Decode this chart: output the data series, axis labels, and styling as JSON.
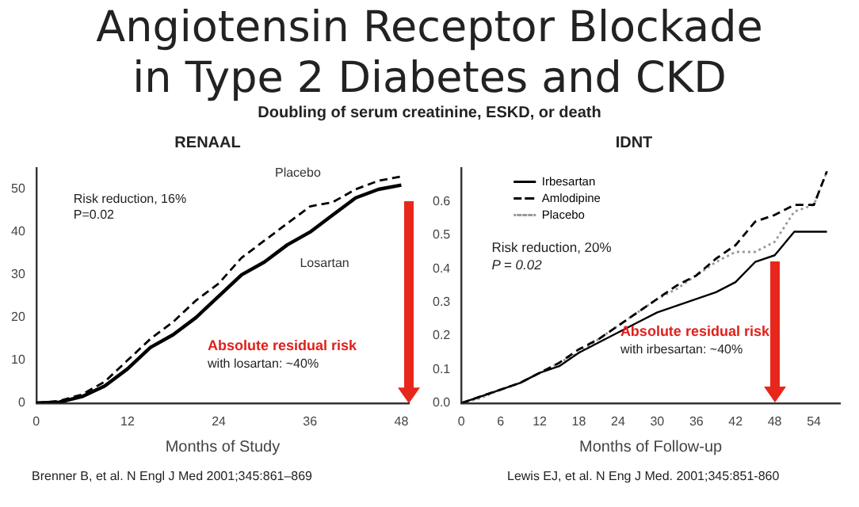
{
  "chart_data": [
    {
      "type": "line",
      "title": "RENAAL",
      "xlabel": "Months of Study",
      "xlim": [
        0,
        49
      ],
      "xticks": [
        0,
        12,
        24,
        36,
        48
      ],
      "ylim": [
        0,
        55
      ],
      "yticks": [
        0,
        10,
        20,
        30,
        40,
        50
      ],
      "grid": false,
      "legend": false,
      "marker": "none",
      "x": [
        0,
        3,
        6,
        9,
        12,
        15,
        18,
        21,
        24,
        27,
        30,
        33,
        36,
        39,
        42,
        45,
        48
      ],
      "series": [
        {
          "name": "Placebo",
          "color": "#000000",
          "line_style": "dashed",
          "values": [
            0,
            0.5,
            2,
            5,
            10,
            15,
            19,
            24,
            28,
            34,
            38,
            42,
            46,
            47,
            50,
            52,
            53
          ]
        },
        {
          "name": "Losartan",
          "color": "#000000",
          "line_style": "solid",
          "values": [
            0,
            0.2,
            1.5,
            4,
            8,
            13,
            16,
            20,
            25,
            30,
            33,
            37,
            40,
            44,
            48,
            50,
            51
          ]
        }
      ],
      "annotations": [
        "Angiotensin Receptor Blockade",
        "in Type 2 Diabetes and CKD",
        "Doubling of serum creatinine, ESKD, or death",
        "Risk reduction, 16%",
        "P=0.02",
        "Absolute residual risk",
        "with losartan: ~40%",
        "Brenner B, et al. N Engl J Med 2001;345:861–869"
      ]
    },
    {
      "type": "line",
      "title": "IDNT",
      "xlabel": "Months of Follow-up",
      "xlim": [
        0,
        58
      ],
      "xticks": [
        0,
        6,
        12,
        18,
        24,
        30,
        36,
        42,
        48,
        54
      ],
      "ylim": [
        0,
        0.7
      ],
      "yticks": [
        {
          "value": 0,
          "label": "0.0"
        },
        0.1,
        0.2,
        0.3,
        0.4,
        0.5,
        0.6
      ],
      "grid": false,
      "legend": "top left",
      "marker": "none",
      "x": [
        0,
        3,
        6,
        9,
        12,
        15,
        18,
        21,
        24,
        27,
        30,
        33,
        36,
        39,
        42,
        45,
        48,
        51,
        54,
        56
      ],
      "series": [
        {
          "name": "Irbesartan",
          "color": "#000000",
          "line_style": "solid",
          "values": [
            0,
            0.02,
            0.04,
            0.06,
            0.09,
            0.11,
            0.15,
            0.18,
            0.21,
            0.24,
            0.27,
            0.29,
            0.31,
            0.33,
            0.36,
            0.42,
            0.44,
            0.51,
            0.51,
            0.51
          ]
        },
        {
          "name": "Amlodipine",
          "color": "#000000",
          "line_style": "dashed",
          "values": [
            0,
            0.02,
            0.04,
            0.06,
            0.09,
            0.12,
            0.16,
            0.19,
            0.23,
            0.27,
            0.31,
            0.35,
            0.38,
            0.43,
            0.47,
            0.54,
            0.56,
            0.59,
            0.59,
            0.69
          ]
        },
        {
          "name": "Placebo",
          "color": "#999999",
          "line_style": "dotted",
          "values": [
            0,
            0.015,
            0.04,
            0.06,
            0.09,
            0.12,
            0.15,
            0.19,
            0.23,
            0.27,
            0.31,
            0.34,
            0.38,
            0.42,
            0.45,
            0.45,
            0.48,
            0.57,
            0.59,
            0.69
          ]
        }
      ],
      "annotations": [
        "Risk reduction, 20%",
        "P = 0.02",
        "Absolute residual risk",
        "with irbesartan: ~40%",
        "Lewis EJ, et al. N Eng J Med. 2001;345:851-860"
      ]
    }
  ]
}
